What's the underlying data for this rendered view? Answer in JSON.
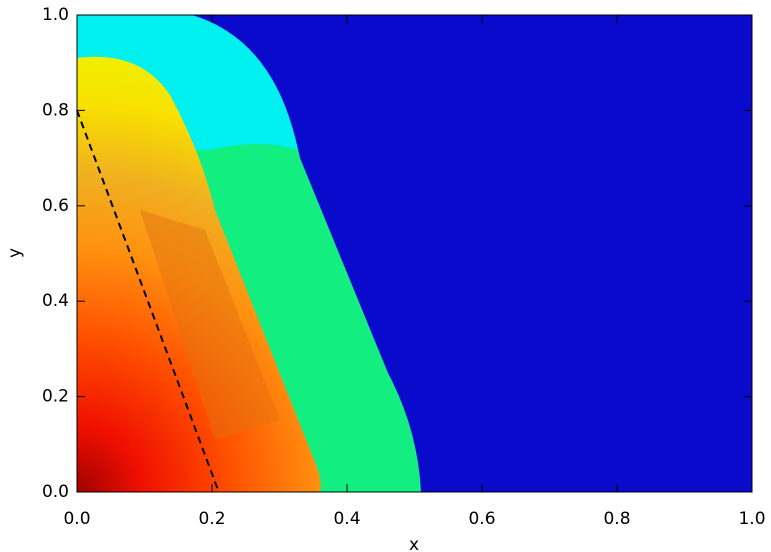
{
  "chart_data": {
    "type": "contour",
    "xlabel": "x",
    "ylabel": "y",
    "xlim": [
      0,
      1
    ],
    "ylim": [
      0,
      1
    ],
    "xticks": [
      {
        "value": 0,
        "label": "0.0"
      },
      0.2,
      0.4,
      0.6,
      0.8,
      {
        "value": 1,
        "label": "1.0"
      }
    ],
    "yticks": [
      {
        "value": 0,
        "label": "0.0"
      },
      0.2,
      0.4,
      0.6,
      0.8,
      {
        "value": 1,
        "label": "1.0"
      }
    ],
    "series": [
      {
        "color": "#000000",
        "dashed": true,
        "x": [
          0,
          0.21
        ],
        "values": [
          0.8,
          0
        ]
      }
    ]
  }
}
